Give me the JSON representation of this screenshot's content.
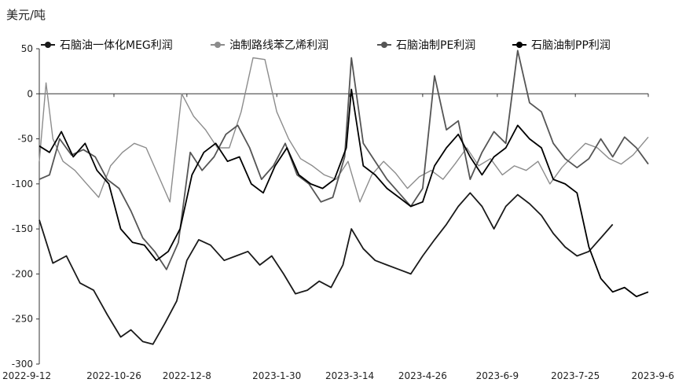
{
  "chart_data": {
    "type": "line",
    "unit": "美元/吨",
    "title": "",
    "xlabel": "",
    "ylabel": "",
    "ylim": [
      -300,
      50
    ],
    "yticks": [
      50,
      0,
      -50,
      -100,
      -150,
      -200,
      -250,
      -300
    ],
    "xlim": [
      "2022-09-12",
      "2023-09-06"
    ],
    "xticks": [
      "2022-9-12",
      "2022-10-26",
      "2022-12-8",
      "2023-1-30",
      "2023-3-14",
      "2023-4-26",
      "2023-6-9",
      "2023-7-25",
      "2023-9-6"
    ],
    "legend_position": "top",
    "series": [
      {
        "name": "石脑油一体化MEG利润",
        "color": "#1a1a1a",
        "x": [
          "2022-09-12",
          "2022-09-20",
          "2022-09-28",
          "2022-10-06",
          "2022-10-14",
          "2022-10-22",
          "2022-10-30",
          "2022-11-05",
          "2022-11-12",
          "2022-11-18",
          "2022-11-25",
          "2022-12-02",
          "2022-12-08",
          "2022-12-15",
          "2022-12-22",
          "2022-12-30",
          "2023-01-06",
          "2023-01-13",
          "2023-01-20",
          "2023-01-27",
          "2023-02-03",
          "2023-02-10",
          "2023-02-17",
          "2023-02-24",
          "2023-03-03",
          "2023-03-10",
          "2023-03-15",
          "2023-03-22",
          "2023-03-29",
          "2023-04-05",
          "2023-04-12",
          "2023-04-19",
          "2023-04-26",
          "2023-05-03",
          "2023-05-10",
          "2023-05-17",
          "2023-05-24",
          "2023-05-31",
          "2023-06-07",
          "2023-06-14",
          "2023-06-21",
          "2023-06-28",
          "2023-07-05",
          "2023-07-12",
          "2023-07-19",
          "2023-07-26",
          "2023-08-02",
          "2023-08-09",
          "2023-08-16"
        ],
        "values": [
          -140,
          -188,
          -180,
          -210,
          -218,
          -245,
          -270,
          -262,
          -275,
          -278,
          -255,
          -230,
          -185,
          -162,
          -168,
          -185,
          -180,
          -175,
          -190,
          -180,
          -200,
          -222,
          -218,
          -208,
          -215,
          -190,
          -150,
          -172,
          -185,
          -190,
          -195,
          -200,
          -180,
          -162,
          -145,
          -125,
          -110,
          -125,
          -150,
          -125,
          -112,
          -122,
          -135,
          -155,
          -170,
          -180,
          -175,
          -160,
          -145
        ]
      },
      {
        "name": "油制路线苯乙烯利润",
        "color": "#8c8c8c",
        "x": [
          "2022-09-12",
          "2022-09-16",
          "2022-09-20",
          "2022-09-26",
          "2022-10-03",
          "2022-10-10",
          "2022-10-17",
          "2022-10-24",
          "2022-10-31",
          "2022-11-07",
          "2022-11-14",
          "2022-11-21",
          "2022-11-28",
          "2022-12-05",
          "2022-12-12",
          "2022-12-19",
          "2022-12-26",
          "2023-01-02",
          "2023-01-09",
          "2023-01-16",
          "2023-01-23",
          "2023-01-30",
          "2023-02-06",
          "2023-02-13",
          "2023-02-20",
          "2023-02-27",
          "2023-03-06",
          "2023-03-13",
          "2023-03-20",
          "2023-03-27",
          "2023-04-03",
          "2023-04-10",
          "2023-04-17",
          "2023-04-24",
          "2023-05-01",
          "2023-05-08",
          "2023-05-15",
          "2023-05-22",
          "2023-05-29",
          "2023-06-05",
          "2023-06-12",
          "2023-06-19",
          "2023-06-26",
          "2023-07-03",
          "2023-07-10",
          "2023-07-17",
          "2023-07-24",
          "2023-07-31",
          "2023-08-07",
          "2023-08-14",
          "2023-08-21",
          "2023-08-28",
          "2023-09-06"
        ],
        "values": [
          -75,
          12,
          -50,
          -75,
          -85,
          -100,
          -115,
          -80,
          -65,
          -55,
          -60,
          -90,
          -120,
          0,
          -25,
          -40,
          -60,
          -60,
          -20,
          40,
          38,
          -20,
          -50,
          -72,
          -80,
          -90,
          -95,
          -75,
          -120,
          -90,
          -75,
          -88,
          -105,
          -92,
          -85,
          -95,
          -78,
          -60,
          -80,
          -72,
          -90,
          -80,
          -85,
          -75,
          -100,
          -82,
          -68,
          -55,
          -60,
          -72,
          -78,
          -68,
          -48
        ]
      },
      {
        "name": "石脑油制PE利润",
        "color": "#555555",
        "x": [
          "2022-09-12",
          "2022-09-18",
          "2022-09-24",
          "2022-10-01",
          "2022-10-08",
          "2022-10-15",
          "2022-10-22",
          "2022-10-29",
          "2022-11-05",
          "2022-11-12",
          "2022-11-19",
          "2022-11-26",
          "2022-12-03",
          "2022-12-10",
          "2022-12-17",
          "2022-12-24",
          "2022-12-31",
          "2023-01-07",
          "2023-01-14",
          "2023-01-21",
          "2023-01-28",
          "2023-02-04",
          "2023-02-11",
          "2023-02-18",
          "2023-02-25",
          "2023-03-04",
          "2023-03-11",
          "2023-03-15",
          "2023-03-22",
          "2023-03-29",
          "2023-04-05",
          "2023-04-12",
          "2023-04-19",
          "2023-04-26",
          "2023-05-03",
          "2023-05-10",
          "2023-05-17",
          "2023-05-24",
          "2023-05-31",
          "2023-06-07",
          "2023-06-14",
          "2023-06-21",
          "2023-06-28",
          "2023-07-05",
          "2023-07-12",
          "2023-07-19",
          "2023-07-26",
          "2023-08-02",
          "2023-08-09",
          "2023-08-16",
          "2023-08-23",
          "2023-08-30",
          "2023-09-06"
        ],
        "values": [
          -95,
          -90,
          -50,
          -68,
          -62,
          -70,
          -95,
          -105,
          -130,
          -160,
          -175,
          -195,
          -165,
          -65,
          -85,
          -70,
          -45,
          -35,
          -60,
          -95,
          -80,
          -55,
          -90,
          -100,
          -120,
          -115,
          -70,
          40,
          -55,
          -75,
          -95,
          -110,
          -125,
          -105,
          20,
          -40,
          -30,
          -95,
          -65,
          -42,
          -55,
          48,
          -10,
          -20,
          -55,
          -72,
          -82,
          -72,
          -50,
          -70,
          -48,
          -60,
          -78
        ]
      },
      {
        "name": "石脑油制PP利润",
        "color": "#000000",
        "x": [
          "2022-09-12",
          "2022-09-18",
          "2022-09-25",
          "2022-10-02",
          "2022-10-09",
          "2022-10-16",
          "2022-10-23",
          "2022-10-30",
          "2022-11-06",
          "2022-11-13",
          "2022-11-20",
          "2022-11-27",
          "2022-12-04",
          "2022-12-11",
          "2022-12-18",
          "2022-12-25",
          "2023-01-01",
          "2023-01-08",
          "2023-01-15",
          "2023-01-22",
          "2023-01-29",
          "2023-02-05",
          "2023-02-12",
          "2023-02-19",
          "2023-02-26",
          "2023-03-05",
          "2023-03-12",
          "2023-03-15",
          "2023-03-22",
          "2023-03-29",
          "2023-04-05",
          "2023-04-12",
          "2023-04-19",
          "2023-04-26",
          "2023-05-03",
          "2023-05-10",
          "2023-05-17",
          "2023-05-24",
          "2023-05-31",
          "2023-06-07",
          "2023-06-14",
          "2023-06-21",
          "2023-06-28",
          "2023-07-05",
          "2023-07-12",
          "2023-07-19",
          "2023-07-26",
          "2023-08-02",
          "2023-08-09",
          "2023-08-16",
          "2023-08-23",
          "2023-08-30",
          "2023-09-06"
        ],
        "values": [
          -58,
          -65,
          -42,
          -70,
          -55,
          -85,
          -100,
          -150,
          -165,
          -168,
          -185,
          -175,
          -150,
          -90,
          -65,
          -55,
          -75,
          -70,
          -100,
          -110,
          -80,
          -60,
          -90,
          -100,
          -105,
          -95,
          -60,
          5,
          -80,
          -90,
          -105,
          -115,
          -125,
          -120,
          -80,
          -60,
          -45,
          -70,
          -90,
          -70,
          -60,
          -35,
          -50,
          -60,
          -95,
          -100,
          -110,
          -170,
          -205,
          -220,
          -215,
          -225,
          -220
        ]
      }
    ]
  }
}
